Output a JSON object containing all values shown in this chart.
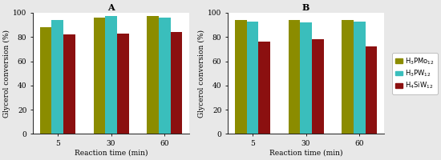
{
  "title_A": "A",
  "title_B": "B",
  "xlabel": "Reaction time (min)",
  "ylabel": "Glycerol conversion (%)",
  "x_labels": [
    "5",
    "30",
    "60"
  ],
  "ylim": [
    0,
    100
  ],
  "yticks": [
    0,
    20,
    40,
    60,
    80,
    100
  ],
  "chart_A": {
    "H3PMo12": [
      88,
      96,
      97
    ],
    "H3PW12": [
      94,
      97,
      96
    ],
    "H4SiW12": [
      82,
      83,
      84
    ]
  },
  "chart_B": {
    "H3PMo12": [
      94,
      94,
      94
    ],
    "H3PW12": [
      93,
      92,
      93
    ],
    "H4SiW12": [
      76,
      78,
      72
    ]
  },
  "colors": {
    "H3PMo12": "#8B8C00",
    "H3PW12": "#3ABEBC",
    "H4SiW12": "#8B1010"
  },
  "legend_labels": {
    "H3PMo12": "H$_3$PMo$_{12}$",
    "H3PW12": "H$_3$PW$_{12}$",
    "H4SiW12": "H$_4$SiW$_{12}$"
  },
  "bar_width": 0.22,
  "background_color": "#ffffff",
  "figure_bg": "#e8e8e8"
}
